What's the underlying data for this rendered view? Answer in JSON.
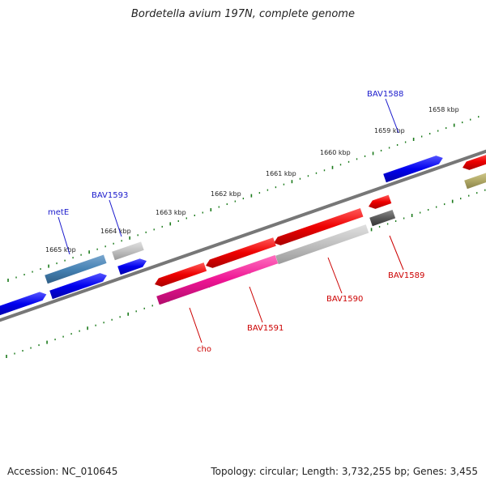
{
  "title": "Bordetella avium 197N, complete genome",
  "footer": {
    "accession": "Accession: NC_010645",
    "topology": "Topology: circular; Length: 3,732,255 bp; Genes: 3,455"
  },
  "colors": {
    "backbone": "#808080",
    "ticks": "#1a7a1a",
    "forward_label": "#1a1acc",
    "reverse_label": "#cc0000",
    "blue_gene": "#0000ee",
    "steel_gene": "#4682b4",
    "red_gene": "#ee0000",
    "pink_gene": "#ee1493",
    "light_gray_gene": "#bdbdbd",
    "dark_gray_gene": "#555555",
    "olive_gene": "#b5ad6a"
  },
  "kbp_labels": [
    "1658 kbp",
    "1659 kbp",
    "1660 kbp",
    "1661 kbp",
    "1662 kbp",
    "1663 kbp",
    "1664 kbp",
    "1665 kbp"
  ],
  "gene_labels": {
    "forward": [
      "BAV1588",
      "BAV1593",
      "metE"
    ],
    "reverse": [
      "BAV1589",
      "BAV1590",
      "BAV1591",
      "cho"
    ]
  }
}
